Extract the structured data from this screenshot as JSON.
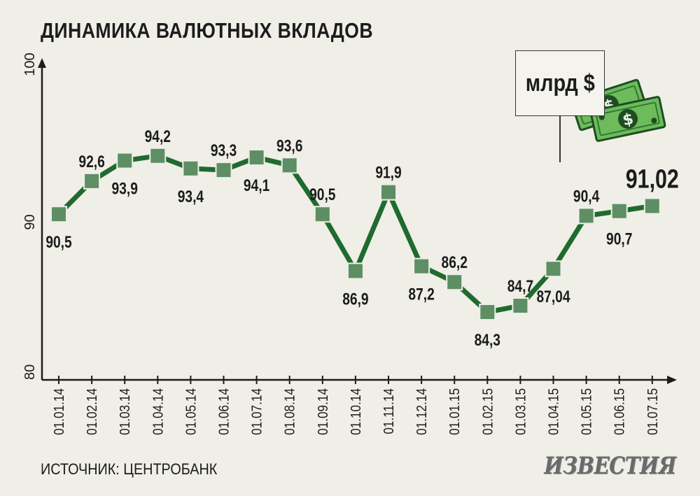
{
  "title": "ДИНАМИКА ВАЛЮТНЫХ ВКЛАДОВ",
  "source": "ИСТОЧНИК: ЦЕНТРОБАНК",
  "logo": "ИЗВЕСТИЯ",
  "unit": "млрд $",
  "colors": {
    "line": "#1f6b2e",
    "marker": "#5d8e64",
    "axis": "#1c1c1c",
    "background": "#efeee7",
    "money": "#6dbb5a"
  },
  "icons": [
    "money-bills-icon"
  ],
  "chart_data": {
    "type": "line",
    "categories": [
      "01.01.14",
      "01.02.14",
      "01.03.14",
      "01.04.14",
      "01.05.14",
      "01.06.14",
      "01.07.14",
      "01.08.14",
      "01.09.14",
      "01.10.14",
      "01.11.14",
      "01.12.14",
      "01.01.15",
      "01.02.15",
      "01.03.15",
      "01.04.15",
      "01.05.15",
      "01.06.15",
      "01.07.15"
    ],
    "values": [
      90.5,
      92.6,
      93.9,
      94.2,
      93.4,
      93.3,
      94.1,
      93.6,
      90.5,
      86.9,
      91.9,
      87.2,
      86.2,
      84.3,
      84.7,
      87.04,
      90.4,
      90.7,
      91.02
    ],
    "labels": [
      "90,5",
      "92,6",
      "93,9",
      "94,2",
      "93,4",
      "93,3",
      "94,1",
      "93,6",
      "90,5",
      "86,9",
      "91,9",
      "87,2",
      "86,2",
      "84,3",
      "84,7",
      "87,04",
      "90,4",
      "90,7",
      "91,02"
    ],
    "label_side": [
      "below",
      "above",
      "below",
      "above",
      "below",
      "above",
      "below",
      "above",
      "above",
      "below",
      "above",
      "below",
      "above",
      "below",
      "above",
      "below",
      "above",
      "below",
      "above"
    ],
    "yticks": [
      "80",
      "90",
      "100"
    ],
    "ytick_values": [
      80,
      90,
      100
    ],
    "ylim": [
      80,
      100
    ],
    "title": "ДИНАМИКА ВАЛЮТНЫХ ВКЛАДОВ",
    "xlabel": "",
    "ylabel": "млрд $",
    "grid": false,
    "legend": "none"
  }
}
